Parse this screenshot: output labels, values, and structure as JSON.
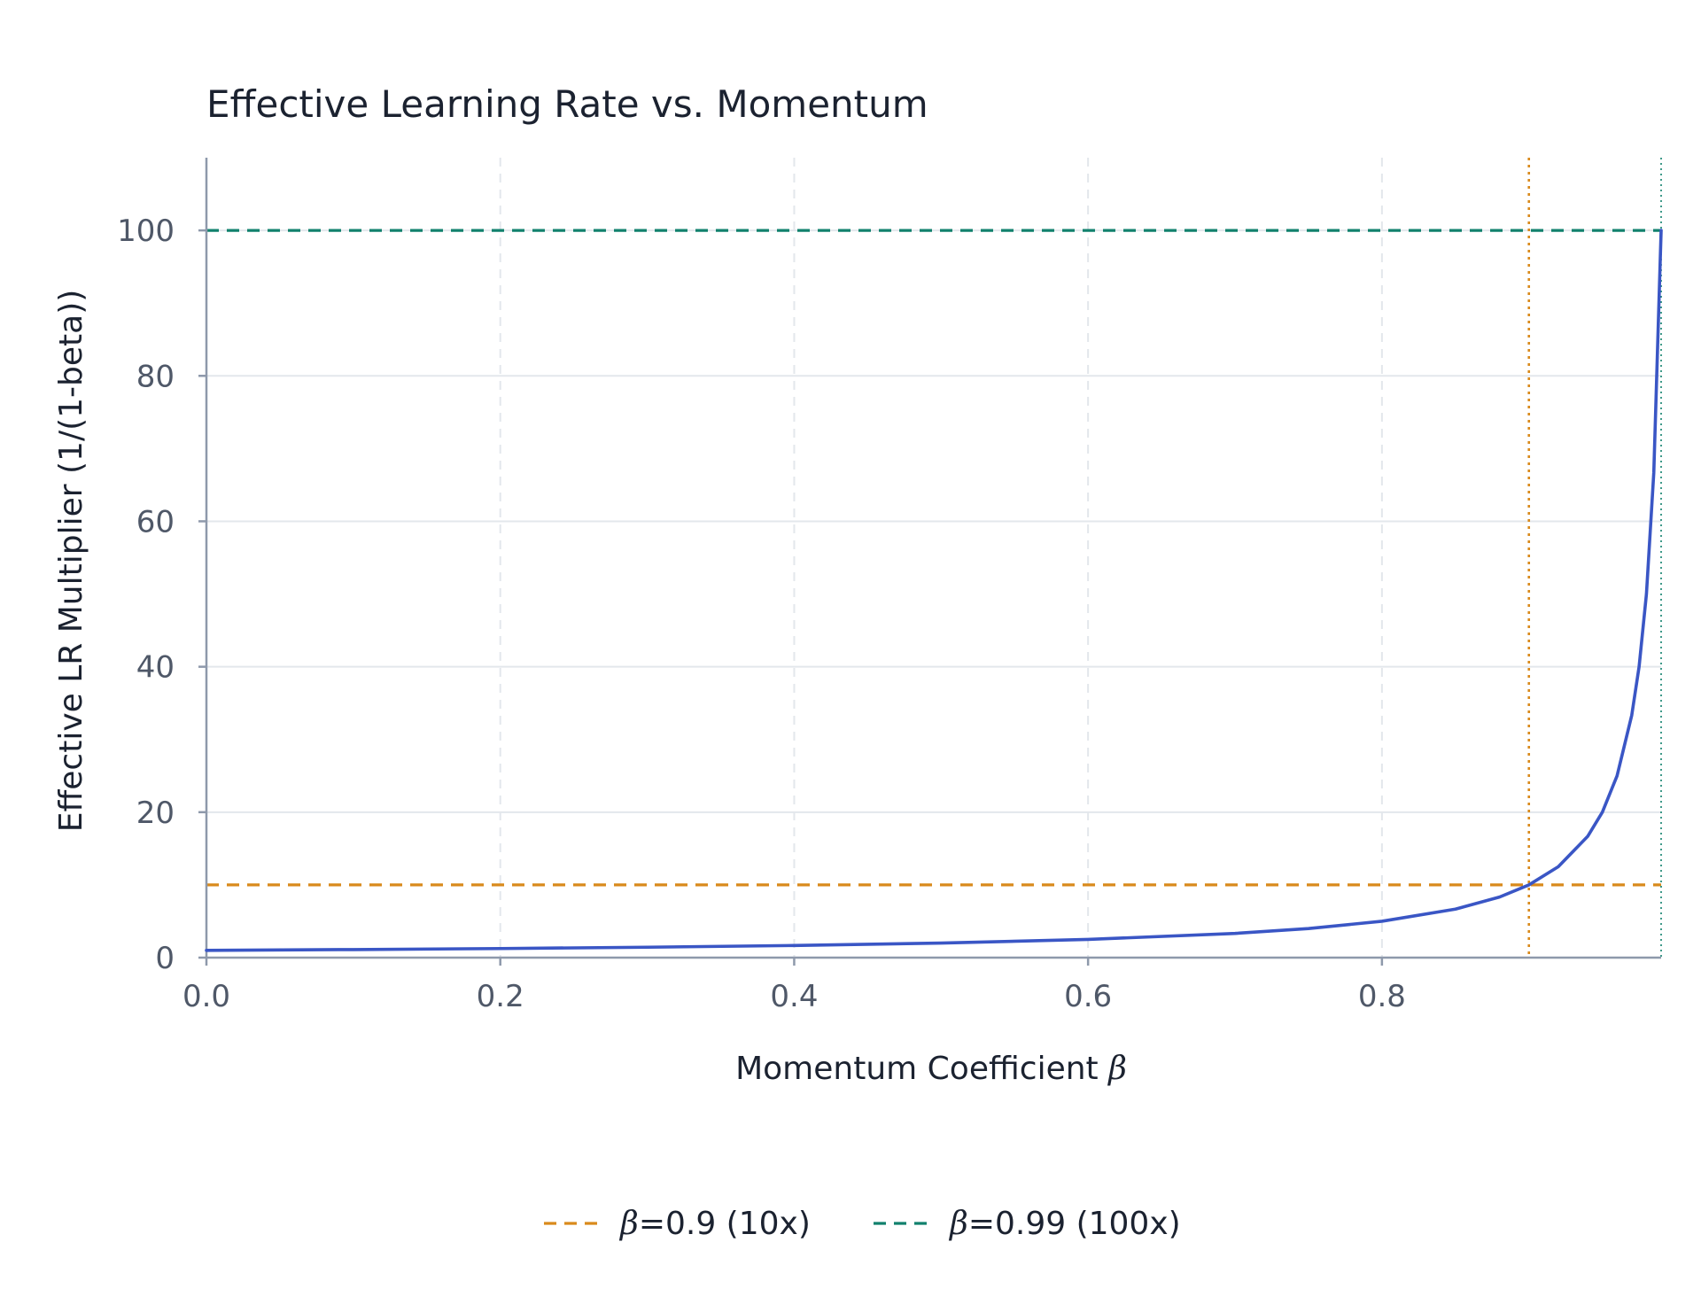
{
  "chart_data": {
    "type": "line",
    "title": "Effective Learning Rate vs. Momentum",
    "xlabel_prefix": "Momentum Coefficient ",
    "xlabel_symbol": "β",
    "ylabel": "Effective LR Multiplier (1/(1-beta))",
    "xlim": [
      0.0,
      0.99
    ],
    "ylim": [
      0,
      110
    ],
    "xticks": [
      0.0,
      0.2,
      0.4,
      0.6,
      0.8
    ],
    "xtick_labels": [
      "0.0",
      "0.2",
      "0.4",
      "0.6",
      "0.8"
    ],
    "yticks": [
      0,
      20,
      40,
      60,
      80,
      100
    ],
    "ytick_labels": [
      "0",
      "20",
      "40",
      "60",
      "80",
      "100"
    ],
    "grid": true,
    "legend_position": "bottom-center",
    "series": [
      {
        "color": "#3a56c5",
        "x": [
          0.0,
          0.1,
          0.2,
          0.3,
          0.4,
          0.5,
          0.6,
          0.7,
          0.75,
          0.8,
          0.85,
          0.88,
          0.9,
          0.92,
          0.94,
          0.95,
          0.96,
          0.97,
          0.975,
          0.98,
          0.985,
          0.99
        ],
        "y": [
          1.0,
          1.11,
          1.25,
          1.43,
          1.67,
          2.0,
          2.5,
          3.33,
          4.0,
          5.0,
          6.67,
          8.33,
          10.0,
          12.5,
          16.67,
          20.0,
          25.0,
          33.33,
          40.0,
          50.0,
          66.67,
          100.0
        ]
      }
    ],
    "reference_lines": [
      {
        "legend_symbol": "β",
        "legend_text": "=0.9  (10x)",
        "color": "#d98a1c",
        "y": 10,
        "x": 0.9
      },
      {
        "legend_symbol": "β",
        "legend_text": "=0.99 (100x)",
        "color": "#11816d",
        "y": 100,
        "x": 0.99
      }
    ]
  }
}
